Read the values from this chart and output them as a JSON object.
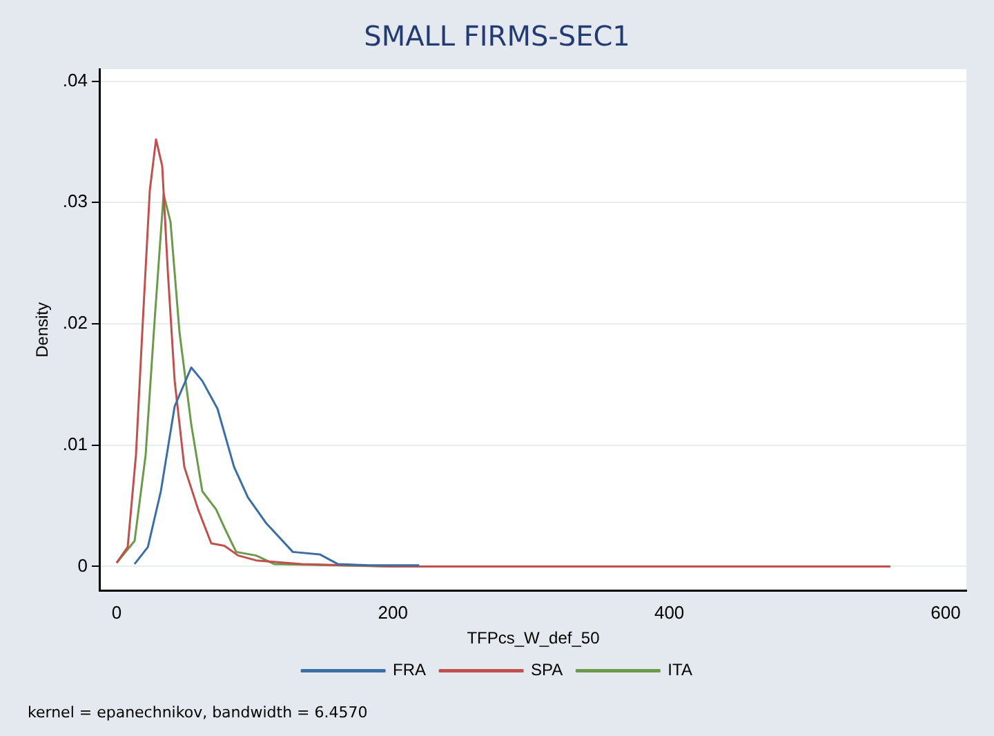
{
  "chart_data": {
    "type": "line",
    "title": "SMALL FIRMS-SEC1",
    "xlabel": "TFPcs_W_def_50",
    "ylabel": "Density",
    "annotations": [
      "kernel = epanechnikov, bandwidth = 6.4570"
    ],
    "series": [
      {
        "name": "FRA",
        "color": "#3a6ea5",
        "x": [
          13,
          22.6,
          32,
          42,
          54,
          62,
          73,
          85,
          95,
          108,
          127.5,
          147,
          160,
          183,
          219
        ],
        "values": [
          0.0002,
          0.0016,
          0.0062,
          0.0132,
          0.0164,
          0.0153,
          0.013,
          0.0082,
          0.0057,
          0.0036,
          0.0012,
          0.001,
          0.0002,
          0.0001,
          0.0001
        ]
      },
      {
        "name": "SPA",
        "color": "#c0504d",
        "x": [
          0,
          8,
          14,
          19,
          24,
          28.5,
          33,
          37,
          42,
          49,
          59,
          68.5,
          78,
          88,
          101,
          134,
          200,
          300,
          400,
          560
        ],
        "values": [
          0.0003,
          0.0016,
          0.0092,
          0.0203,
          0.031,
          0.0352,
          0.033,
          0.0244,
          0.0153,
          0.0082,
          0.0047,
          0.0019,
          0.0017,
          0.0009,
          0.0005,
          0.0002,
          0,
          0,
          0,
          0
        ]
      },
      {
        "name": "ITA",
        "color": "#6a9a4a",
        "x": [
          0,
          13,
          21,
          27.5,
          34,
          39,
          45.5,
          54,
          62,
          72,
          78,
          86.5,
          101,
          114,
          200,
          308
        ],
        "values": [
          0.0003,
          0.0021,
          0.0092,
          0.0203,
          0.0307,
          0.0284,
          0.0193,
          0.0117,
          0.0062,
          0.0047,
          0.0032,
          0.0012,
          0.0009,
          0.0002,
          0,
          0
        ]
      }
    ],
    "xlim": [
      -12,
      615
    ],
    "xticks": [
      0,
      200,
      400,
      600
    ],
    "ylim": [
      -0.002,
      0.041
    ],
    "yticks": [
      0,
      {
        "value": 0.01,
        "label": ".01"
      },
      {
        "value": 0.02,
        "label": ".02"
      },
      {
        "value": 0.03,
        "label": ".03"
      },
      {
        "value": 0.04,
        "label": ".04"
      }
    ],
    "grid": "y",
    "legend": "bottom",
    "marker": "none",
    "line_style": "solid"
  }
}
